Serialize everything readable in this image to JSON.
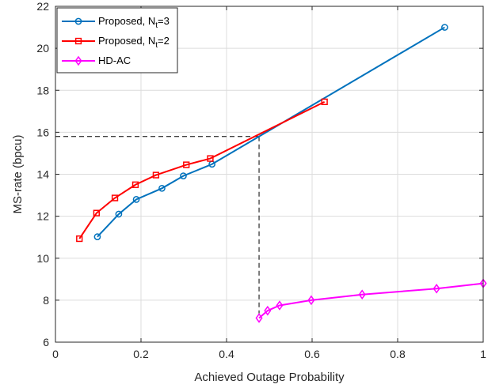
{
  "chart_data": {
    "type": "line",
    "xlabel": "Achieved Outage Probability",
    "ylabel": "MS-rate (bpcu)",
    "xlim": [
      0,
      1
    ],
    "ylim": [
      6,
      22
    ],
    "xticks": [
      "0",
      "0.2",
      "0.4",
      "0.6",
      "0.8",
      "1"
    ],
    "yticks": [
      "6",
      "8",
      "10",
      "12",
      "14",
      "16",
      "18",
      "20",
      "22"
    ],
    "grid": true,
    "legend_position": "top-left",
    "series": [
      {
        "name": "Proposed, N_t=3",
        "legend_main": "Proposed, N",
        "legend_sub": "t",
        "legend_tail": "=3",
        "color": "#0072BD",
        "marker": "circle",
        "x": [
          0.098,
          0.148,
          0.189,
          0.249,
          0.299,
          0.366,
          0.91
        ],
        "y": [
          11.02,
          12.1,
          12.8,
          13.33,
          13.92,
          14.48,
          21.0
        ]
      },
      {
        "name": "Proposed, N_t=2",
        "legend_main": "Proposed, N",
        "legend_sub": "t",
        "legend_tail": "=2",
        "color": "#FF0000",
        "marker": "square",
        "x": [
          0.056,
          0.096,
          0.139,
          0.187,
          0.235,
          0.306,
          0.362,
          0.629
        ],
        "y": [
          10.93,
          12.15,
          12.87,
          13.5,
          13.96,
          14.45,
          14.75,
          17.45
        ]
      },
      {
        "name": "HD-AC",
        "legend_main": "HD-AC",
        "legend_sub": "",
        "legend_tail": "",
        "color": "#FF00FF",
        "marker": "diamond",
        "x": [
          0.476,
          0.496,
          0.524,
          0.598,
          0.717,
          0.891,
          1.0
        ],
        "y": [
          7.15,
          7.5,
          7.75,
          8.0,
          8.27,
          8.55,
          8.8
        ]
      }
    ],
    "reference_lines": {
      "color": "#000000",
      "style": "dashed",
      "x": 0.476,
      "y": 15.8
    }
  }
}
